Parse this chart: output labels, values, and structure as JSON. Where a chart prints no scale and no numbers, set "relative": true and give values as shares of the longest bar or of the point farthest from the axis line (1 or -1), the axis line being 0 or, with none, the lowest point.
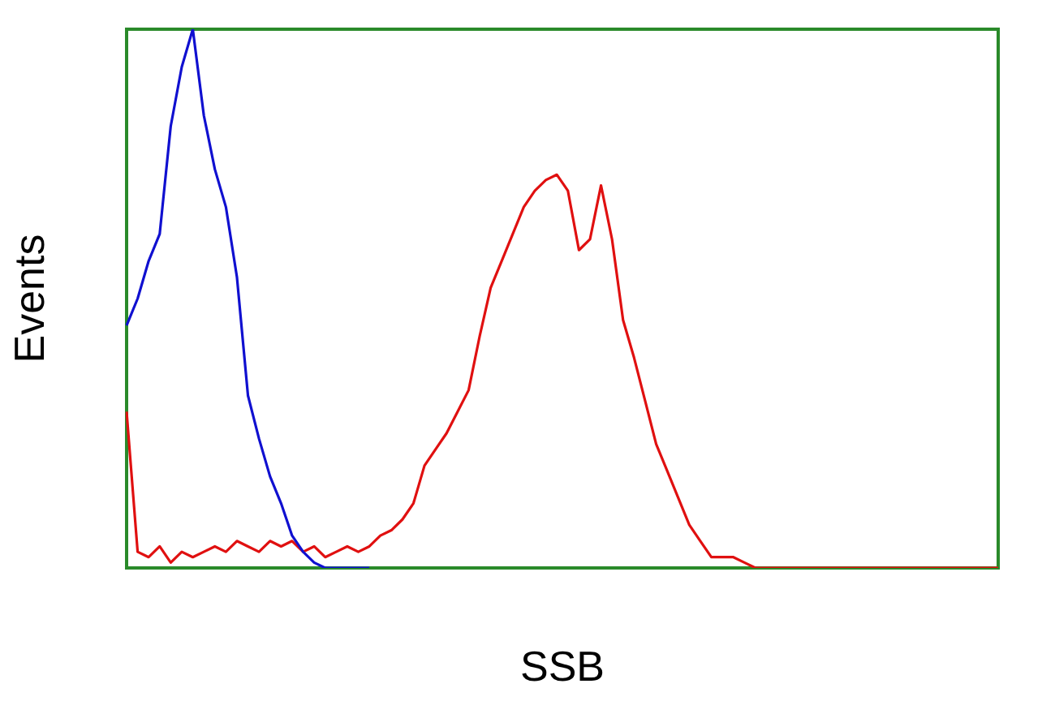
{
  "chart_data": {
    "type": "line",
    "relative": true,
    "xlabel": "SSB",
    "ylabel": "Events",
    "grid": false,
    "legend": false,
    "marker": "none",
    "line_style": "solid",
    "categories": [
      null,
      null,
      null,
      null,
      null,
      null,
      null,
      null,
      null,
      null,
      null,
      null,
      null,
      null,
      null,
      null,
      null,
      null,
      null,
      null,
      null,
      null,
      null,
      null,
      null,
      null,
      null,
      null,
      null,
      null,
      null,
      null,
      null,
      null,
      null,
      null,
      null,
      null,
      null,
      null,
      null,
      null,
      null,
      null,
      null,
      null,
      null,
      null,
      null,
      null,
      null,
      null,
      null,
      null,
      null,
      null,
      null,
      null,
      null,
      null,
      null,
      null,
      null,
      null,
      null,
      null,
      null,
      null,
      null,
      null,
      null,
      null,
      null,
      null,
      null,
      null,
      null,
      null,
      null,
      null
    ],
    "series": [
      {
        "color": "#1010d0",
        "values": [
          0.45,
          0.5,
          0.57,
          0.62,
          0.82,
          0.93,
          1,
          0.84,
          0.74,
          0.67,
          0.54,
          0.32,
          0.24,
          0.17,
          0.12,
          0.06,
          0.03,
          0.01,
          0,
          0,
          0,
          0,
          0,
          null,
          null,
          null,
          null,
          null,
          null,
          null,
          null,
          null,
          null,
          null,
          null,
          null,
          null,
          null,
          null,
          null,
          null,
          null,
          null,
          null,
          null,
          null,
          null,
          null,
          null,
          null,
          null,
          null,
          null,
          null,
          null,
          null,
          null,
          null,
          null,
          null,
          null,
          null,
          null,
          null,
          null,
          null,
          null,
          null,
          null,
          null,
          null,
          null,
          null,
          null,
          null,
          null,
          null,
          null,
          null,
          null
        ]
      },
      {
        "color": "#e01010",
        "values": [
          0.29,
          0.03,
          0.02,
          0.04,
          0.01,
          0.03,
          0.02,
          0.03,
          0.04,
          0.03,
          0.05,
          0.04,
          0.03,
          0.05,
          0.04,
          0.05,
          0.03,
          0.04,
          0.02,
          0.03,
          0.04,
          0.03,
          0.04,
          0.06,
          0.07,
          0.09,
          0.12,
          0.19,
          0.22,
          0.25,
          0.29,
          0.33,
          0.43,
          0.52,
          0.57,
          0.62,
          0.67,
          0.7,
          0.72,
          0.73,
          0.7,
          0.59,
          0.61,
          0.71,
          0.61,
          0.46,
          0.39,
          0.31,
          0.23,
          0.18,
          0.13,
          0.08,
          0.05,
          0.02,
          0.02,
          0.02,
          0.01,
          0,
          0,
          0,
          0,
          0,
          0,
          0,
          0,
          0,
          0,
          0,
          0,
          0,
          0,
          0,
          0,
          0,
          0,
          0,
          0,
          0,
          0,
          0
        ]
      }
    ]
  }
}
